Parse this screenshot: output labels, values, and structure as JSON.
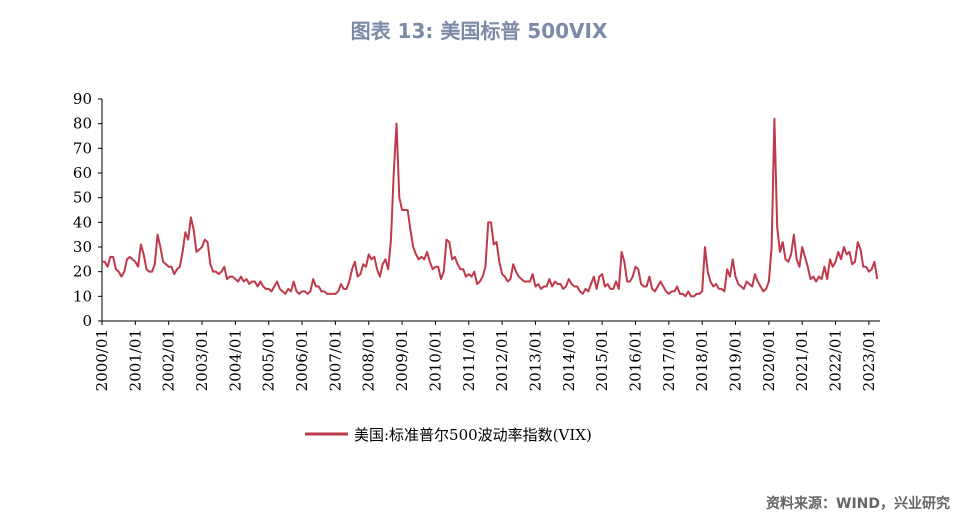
{
  "chart_data": {
    "type": "line",
    "title": "图表 13: 美国标普 500VIX",
    "source": "资料来源：WIND，兴业研究",
    "x": [
      "2000/01",
      "2000/02",
      "2000/03",
      "2000/04",
      "2000/05",
      "2000/06",
      "2000/07",
      "2000/08",
      "2000/09",
      "2000/10",
      "2000/11",
      "2000/12",
      "2001/01",
      "2001/02",
      "2001/03",
      "2001/04",
      "2001/05",
      "2001/06",
      "2001/07",
      "2001/08",
      "2001/09",
      "2001/10",
      "2001/11",
      "2001/12",
      "2002/01",
      "2002/02",
      "2002/03",
      "2002/04",
      "2002/05",
      "2002/06",
      "2002/07",
      "2002/08",
      "2002/09",
      "2002/10",
      "2002/11",
      "2002/12",
      "2003/01",
      "2003/02",
      "2003/03",
      "2003/04",
      "2003/05",
      "2003/06",
      "2003/07",
      "2003/08",
      "2003/09",
      "2003/10",
      "2003/11",
      "2003/12",
      "2004/01",
      "2004/02",
      "2004/03",
      "2004/04",
      "2004/05",
      "2004/06",
      "2004/07",
      "2004/08",
      "2004/09",
      "2004/10",
      "2004/11",
      "2004/12",
      "2005/01",
      "2005/02",
      "2005/03",
      "2005/04",
      "2005/05",
      "2005/06",
      "2005/07",
      "2005/08",
      "2005/09",
      "2005/10",
      "2005/11",
      "2005/12",
      "2006/01",
      "2006/02",
      "2006/03",
      "2006/04",
      "2006/05",
      "2006/06",
      "2006/07",
      "2006/08",
      "2006/09",
      "2006/10",
      "2006/11",
      "2006/12",
      "2007/01",
      "2007/02",
      "2007/03",
      "2007/04",
      "2007/05",
      "2007/06",
      "2007/07",
      "2007/08",
      "2007/09",
      "2007/10",
      "2007/11",
      "2007/12",
      "2008/01",
      "2008/02",
      "2008/03",
      "2008/04",
      "2008/05",
      "2008/06",
      "2008/07",
      "2008/08",
      "2008/09",
      "2008/10",
      "2008/11",
      "2008/12",
      "2009/01",
      "2009/02",
      "2009/03",
      "2009/04",
      "2009/05",
      "2009/06",
      "2009/07",
      "2009/08",
      "2009/09",
      "2009/10",
      "2009/11",
      "2009/12",
      "2010/01",
      "2010/02",
      "2010/03",
      "2010/04",
      "2010/05",
      "2010/06",
      "2010/07",
      "2010/08",
      "2010/09",
      "2010/10",
      "2010/11",
      "2010/12",
      "2011/01",
      "2011/02",
      "2011/03",
      "2011/04",
      "2011/05",
      "2011/06",
      "2011/07",
      "2011/08",
      "2011/09",
      "2011/10",
      "2011/11",
      "2011/12",
      "2012/01",
      "2012/02",
      "2012/03",
      "2012/04",
      "2012/05",
      "2012/06",
      "2012/07",
      "2012/08",
      "2012/09",
      "2012/10",
      "2012/11",
      "2012/12",
      "2013/01",
      "2013/02",
      "2013/03",
      "2013/04",
      "2013/05",
      "2013/06",
      "2013/07",
      "2013/08",
      "2013/09",
      "2013/10",
      "2013/11",
      "2013/12",
      "2014/01",
      "2014/02",
      "2014/03",
      "2014/04",
      "2014/05",
      "2014/06",
      "2014/07",
      "2014/08",
      "2014/09",
      "2014/10",
      "2014/11",
      "2014/12",
      "2015/01",
      "2015/02",
      "2015/03",
      "2015/04",
      "2015/05",
      "2015/06",
      "2015/07",
      "2015/08",
      "2015/09",
      "2015/10",
      "2015/11",
      "2015/12",
      "2016/01",
      "2016/02",
      "2016/03",
      "2016/04",
      "2016/05",
      "2016/06",
      "2016/07",
      "2016/08",
      "2016/09",
      "2016/10",
      "2016/11",
      "2016/12",
      "2017/01",
      "2017/02",
      "2017/03",
      "2017/04",
      "2017/05",
      "2017/06",
      "2017/07",
      "2017/08",
      "2017/09",
      "2017/10",
      "2017/11",
      "2017/12",
      "2018/01",
      "2018/02",
      "2018/03",
      "2018/04",
      "2018/05",
      "2018/06",
      "2018/07",
      "2018/08",
      "2018/09",
      "2018/10",
      "2018/11",
      "2018/12",
      "2019/01",
      "2019/02",
      "2019/03",
      "2019/04",
      "2019/05",
      "2019/06",
      "2019/07",
      "2019/08",
      "2019/09",
      "2019/10",
      "2019/11",
      "2019/12",
      "2020/01",
      "2020/02",
      "2020/03",
      "2020/04",
      "2020/05",
      "2020/06",
      "2020/07",
      "2020/08",
      "2020/09",
      "2020/10",
      "2020/11",
      "2020/12",
      "2021/01",
      "2021/02",
      "2021/03",
      "2021/04",
      "2021/05",
      "2021/06",
      "2021/07",
      "2021/08",
      "2021/09",
      "2021/10",
      "2021/11",
      "2021/12",
      "2022/01",
      "2022/02",
      "2022/03",
      "2022/04",
      "2022/05",
      "2022/06",
      "2022/07",
      "2022/08",
      "2022/09",
      "2022/10",
      "2022/11",
      "2022/12",
      "2023/01",
      "2023/02",
      "2023/03",
      "2023/04"
    ],
    "series": [
      {
        "name": "美国:标准普尔500波动率指数(VIX)",
        "color": "#c0394b",
        "values": [
          24,
          24,
          22,
          26,
          26,
          21,
          20,
          18,
          20,
          25,
          26,
          25,
          24,
          22,
          31,
          27,
          21,
          20,
          20,
          23,
          35,
          30,
          24,
          23,
          22,
          22,
          19,
          21,
          22,
          28,
          36,
          33,
          42,
          37,
          28,
          29,
          30,
          33,
          32,
          23,
          20,
          20,
          19,
          20,
          22,
          17,
          18,
          18,
          17,
          16,
          18,
          16,
          17,
          15,
          16,
          16,
          14,
          16,
          14,
          13,
          13,
          12,
          14,
          16,
          13,
          12,
          11,
          13,
          12,
          16,
          12,
          11,
          12,
          12,
          11,
          12,
          17,
          14,
          14,
          12,
          12,
          11,
          11,
          11,
          11,
          12,
          15,
          13,
          13,
          16,
          21,
          24,
          18,
          19,
          23,
          22,
          27,
          25,
          26,
          21,
          18,
          23,
          25,
          21,
          33,
          60,
          80,
          50,
          45,
          45,
          45,
          37,
          30,
          27,
          25,
          26,
          25,
          28,
          24,
          21,
          22,
          22,
          17,
          20,
          33,
          32,
          25,
          26,
          23,
          21,
          21,
          18,
          19,
          18,
          20,
          15,
          16,
          18,
          22,
          40,
          40,
          31,
          32,
          24,
          19,
          18,
          16,
          17,
          23,
          20,
          18,
          17,
          16,
          16,
          16,
          19,
          14,
          15,
          13,
          14,
          14,
          17,
          14,
          16,
          15,
          15,
          13,
          14,
          17,
          15,
          14,
          14,
          12,
          11,
          13,
          12,
          15,
          18,
          13,
          18,
          19,
          14,
          15,
          13,
          13,
          16,
          13,
          28,
          24,
          16,
          16,
          18,
          22,
          21,
          15,
          14,
          14,
          18,
          13,
          12,
          14,
          16,
          14,
          12,
          11,
          12,
          12,
          14,
          11,
          11,
          10,
          12,
          10,
          10,
          11,
          11,
          12,
          30,
          20,
          16,
          14,
          15,
          13,
          13,
          12,
          21,
          18,
          25,
          18,
          15,
          14,
          13,
          16,
          15,
          14,
          19,
          16,
          14,
          12,
          13,
          16,
          30,
          82,
          38,
          28,
          32,
          25,
          24,
          27,
          35,
          25,
          22,
          30,
          26,
          22,
          17,
          18,
          16,
          18,
          17,
          22,
          17,
          25,
          22,
          24,
          28,
          25,
          30,
          27,
          28,
          23,
          24,
          32,
          29,
          22,
          22,
          20,
          21,
          24,
          17
        ]
      }
    ],
    "xticks": [
      "2000/01",
      "2001/01",
      "2002/01",
      "2003/01",
      "2004/01",
      "2005/01",
      "2006/01",
      "2007/01",
      "2008/01",
      "2009/01",
      "2010/01",
      "2011/01",
      "2012/01",
      "2013/01",
      "2014/01",
      "2015/01",
      "2016/01",
      "2017/01",
      "2018/01",
      "2019/01",
      "2020/01",
      "2021/01",
      "2022/01",
      "2023/01"
    ],
    "ylim": [
      0,
      90
    ],
    "yticks": [
      0,
      10,
      20,
      30,
      40,
      50,
      60,
      70,
      80,
      90
    ]
  }
}
